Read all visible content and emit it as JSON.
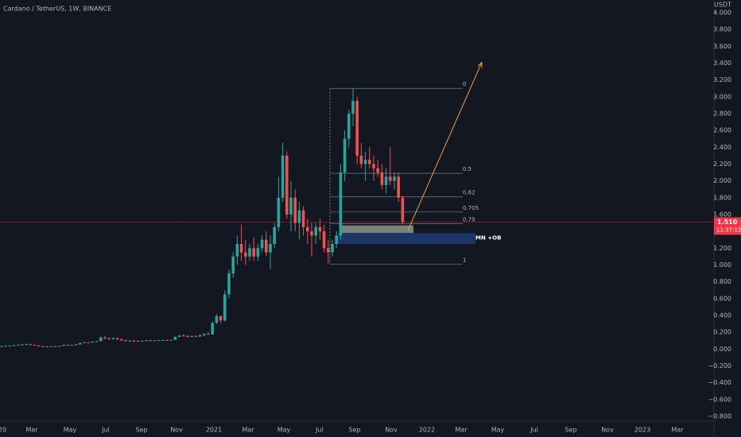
{
  "chart_data": {
    "type": "candlestick",
    "title": "Cardano / TetherUS, 1W, BINANCE",
    "price_unit": "USDT",
    "colors": {
      "up": "#26a69a",
      "down": "#ef5350"
    },
    "candles": [
      [
        0.033,
        0.038,
        0.03,
        0.036
      ],
      [
        0.036,
        0.04,
        0.034,
        0.038
      ],
      [
        0.038,
        0.042,
        0.035,
        0.04
      ],
      [
        0.04,
        0.05,
        0.038,
        0.048
      ],
      [
        0.048,
        0.055,
        0.045,
        0.052
      ],
      [
        0.052,
        0.06,
        0.048,
        0.055
      ],
      [
        0.055,
        0.066,
        0.05,
        0.058
      ],
      [
        0.058,
        0.062,
        0.048,
        0.05
      ],
      [
        0.05,
        0.053,
        0.04,
        0.042
      ],
      [
        0.042,
        0.045,
        0.03,
        0.033
      ],
      [
        0.033,
        0.036,
        0.02,
        0.03
      ],
      [
        0.03,
        0.034,
        0.026,
        0.032
      ],
      [
        0.032,
        0.036,
        0.03,
        0.034
      ],
      [
        0.034,
        0.036,
        0.031,
        0.033
      ],
      [
        0.033,
        0.04,
        0.032,
        0.038
      ],
      [
        0.038,
        0.052,
        0.036,
        0.05
      ],
      [
        0.05,
        0.054,
        0.045,
        0.048
      ],
      [
        0.048,
        0.052,
        0.044,
        0.05
      ],
      [
        0.05,
        0.058,
        0.048,
        0.055
      ],
      [
        0.055,
        0.075,
        0.053,
        0.072
      ],
      [
        0.072,
        0.085,
        0.068,
        0.08
      ],
      [
        0.08,
        0.084,
        0.072,
        0.078
      ],
      [
        0.078,
        0.09,
        0.075,
        0.088
      ],
      [
        0.088,
        0.1,
        0.085,
        0.095
      ],
      [
        0.095,
        0.15,
        0.093,
        0.135
      ],
      [
        0.135,
        0.155,
        0.12,
        0.128
      ],
      [
        0.128,
        0.135,
        0.11,
        0.118
      ],
      [
        0.118,
        0.14,
        0.115,
        0.13
      ],
      [
        0.13,
        0.135,
        0.11,
        0.115
      ],
      [
        0.115,
        0.125,
        0.098,
        0.105
      ],
      [
        0.105,
        0.11,
        0.09,
        0.095
      ],
      [
        0.095,
        0.105,
        0.088,
        0.1
      ],
      [
        0.1,
        0.11,
        0.095,
        0.098
      ],
      [
        0.098,
        0.104,
        0.09,
        0.095
      ],
      [
        0.095,
        0.102,
        0.092,
        0.1
      ],
      [
        0.1,
        0.108,
        0.096,
        0.104
      ],
      [
        0.104,
        0.108,
        0.095,
        0.098
      ],
      [
        0.098,
        0.105,
        0.094,
        0.102
      ],
      [
        0.102,
        0.11,
        0.098,
        0.105
      ],
      [
        0.105,
        0.112,
        0.1,
        0.108
      ],
      [
        0.108,
        0.115,
        0.102,
        0.105
      ],
      [
        0.105,
        0.112,
        0.098,
        0.11
      ],
      [
        0.11,
        0.15,
        0.108,
        0.145
      ],
      [
        0.145,
        0.17,
        0.14,
        0.16
      ],
      [
        0.16,
        0.175,
        0.15,
        0.155
      ],
      [
        0.155,
        0.165,
        0.14,
        0.15
      ],
      [
        0.15,
        0.16,
        0.14,
        0.155
      ],
      [
        0.155,
        0.165,
        0.145,
        0.15
      ],
      [
        0.15,
        0.17,
        0.145,
        0.165
      ],
      [
        0.165,
        0.185,
        0.15,
        0.18
      ],
      [
        0.18,
        0.2,
        0.17,
        0.175
      ],
      [
        0.175,
        0.33,
        0.17,
        0.31
      ],
      [
        0.31,
        0.42,
        0.3,
        0.39
      ],
      [
        0.39,
        0.4,
        0.31,
        0.34
      ],
      [
        0.34,
        0.7,
        0.33,
        0.65
      ],
      [
        0.65,
        0.95,
        0.6,
        0.9
      ],
      [
        0.9,
        1.15,
        0.85,
        1.1
      ],
      [
        1.1,
        1.35,
        1.0,
        1.25
      ],
      [
        1.25,
        1.48,
        1.05,
        1.15
      ],
      [
        1.15,
        1.3,
        1.0,
        1.1
      ],
      [
        1.1,
        1.25,
        1.05,
        1.2
      ],
      [
        1.2,
        1.33,
        1.05,
        1.1
      ],
      [
        1.1,
        1.25,
        1.05,
        1.2
      ],
      [
        1.2,
        1.35,
        1.15,
        1.3
      ],
      [
        1.3,
        1.4,
        1.1,
        1.15
      ],
      [
        1.15,
        1.35,
        0.95,
        1.25
      ],
      [
        1.25,
        1.5,
        1.2,
        1.45
      ],
      [
        1.45,
        2.05,
        1.4,
        1.8
      ],
      [
        1.8,
        2.45,
        1.75,
        2.3
      ],
      [
        2.3,
        2.35,
        1.55,
        1.6
      ],
      [
        1.6,
        2.0,
        1.4,
        1.8
      ],
      [
        1.8,
        1.9,
        1.4,
        1.5
      ],
      [
        1.5,
        1.75,
        1.3,
        1.65
      ],
      [
        1.65,
        1.7,
        1.35,
        1.45
      ],
      [
        1.45,
        1.55,
        1.25,
        1.4
      ],
      [
        1.4,
        1.5,
        1.1,
        1.35
      ],
      [
        1.35,
        1.5,
        1.25,
        1.45
      ],
      [
        1.45,
        1.55,
        1.3,
        1.4
      ],
      [
        1.4,
        1.48,
        1.15,
        1.2
      ],
      [
        1.2,
        1.3,
        1.02,
        1.15
      ],
      [
        1.15,
        1.3,
        1.1,
        1.25
      ],
      [
        1.25,
        1.4,
        1.2,
        1.35
      ],
      [
        1.35,
        2.2,
        1.3,
        2.1
      ],
      [
        2.1,
        2.6,
        2.0,
        2.5
      ],
      [
        2.5,
        2.85,
        2.4,
        2.8
      ],
      [
        2.8,
        3.1,
        2.65,
        2.95
      ],
      [
        2.95,
        3.0,
        2.2,
        2.3
      ],
      [
        2.3,
        2.45,
        2.15,
        2.2
      ],
      [
        2.2,
        2.35,
        2.0,
        2.25
      ],
      [
        2.25,
        2.4,
        2.15,
        2.2
      ],
      [
        2.2,
        2.3,
        2.0,
        2.15
      ],
      [
        2.15,
        2.25,
        2.05,
        2.1
      ],
      [
        2.1,
        2.2,
        1.9,
        1.95
      ],
      [
        1.95,
        2.15,
        1.85,
        2.05
      ],
      [
        2.05,
        2.4,
        1.95,
        2.0
      ],
      [
        2.0,
        2.1,
        1.9,
        2.05
      ],
      [
        2.05,
        2.1,
        1.75,
        1.8
      ],
      [
        1.8,
        1.82,
        1.48,
        1.51
      ]
    ],
    "ylim": [
      -0.857,
      4.151
    ],
    "yticks": [
      {
        "value": 4.0,
        "label": "4.000"
      },
      {
        "value": 3.8,
        "label": "3.800"
      },
      {
        "value": 3.6,
        "label": "3.600"
      },
      {
        "value": 3.4,
        "label": "3.400"
      },
      {
        "value": 3.2,
        "label": "3.200"
      },
      {
        "value": 3.0,
        "label": "3.000"
      },
      {
        "value": 2.8,
        "label": "2.800"
      },
      {
        "value": 2.6,
        "label": "2.600"
      },
      {
        "value": 2.4,
        "label": "2.400"
      },
      {
        "value": 2.2,
        "label": "2.200"
      },
      {
        "value": 2.0,
        "label": "2.000"
      },
      {
        "value": 1.8,
        "label": "1.800"
      },
      {
        "value": 1.6,
        "label": "1.600"
      },
      {
        "value": 1.4,
        "label": "1.400"
      },
      {
        "value": 1.2,
        "label": "1.200"
      },
      {
        "value": 1.0,
        "label": "1.000"
      },
      {
        "value": 0.8,
        "label": "0.800"
      },
      {
        "value": 0.6,
        "label": "0.600"
      },
      {
        "value": 0.4,
        "label": "0.400"
      },
      {
        "value": 0.2,
        "label": "0.200"
      },
      {
        "value": 0,
        "label": "0.000"
      },
      {
        "value": -0.2,
        "label": "−0.200"
      },
      {
        "value": -0.4,
        "label": "−0.400"
      },
      {
        "value": -0.6,
        "label": "−0.600"
      },
      {
        "value": -0.8,
        "label": "−0.800"
      }
    ],
    "x_labels": [
      "20",
      "Mar",
      "May",
      "Jul",
      "Sep",
      "Nov",
      "2021",
      "Mar",
      "May",
      "Jul",
      "Sep",
      "Nov",
      "2022",
      "Mar",
      "May",
      "Jul",
      "Sep",
      "Nov",
      "2023",
      "Mar"
    ],
    "last_price": {
      "value": 1.51,
      "label": "1.510",
      "countdown": "11:37:12",
      "color": "#f23645"
    },
    "fib_levels": [
      {
        "level": 0,
        "price": 3.1
      },
      {
        "level": 0.5,
        "price": 2.09
      },
      {
        "level": 0.62,
        "price": 1.81
      },
      {
        "level": 0.705,
        "price": 1.63
      },
      {
        "level": 0.79,
        "price": 1.49
      },
      {
        "level": 1,
        "price": 1.01
      }
    ],
    "zones": [
      {
        "top": 1.47,
        "bottom": 1.38,
        "color": "#8d9488"
      },
      {
        "top": 1.38,
        "bottom": 1.25,
        "color": "#1f3d73",
        "label": "MN +OB"
      }
    ],
    "arrow": {
      "from": 1.41,
      "to": 3.41,
      "color": "#f0a030"
    }
  }
}
